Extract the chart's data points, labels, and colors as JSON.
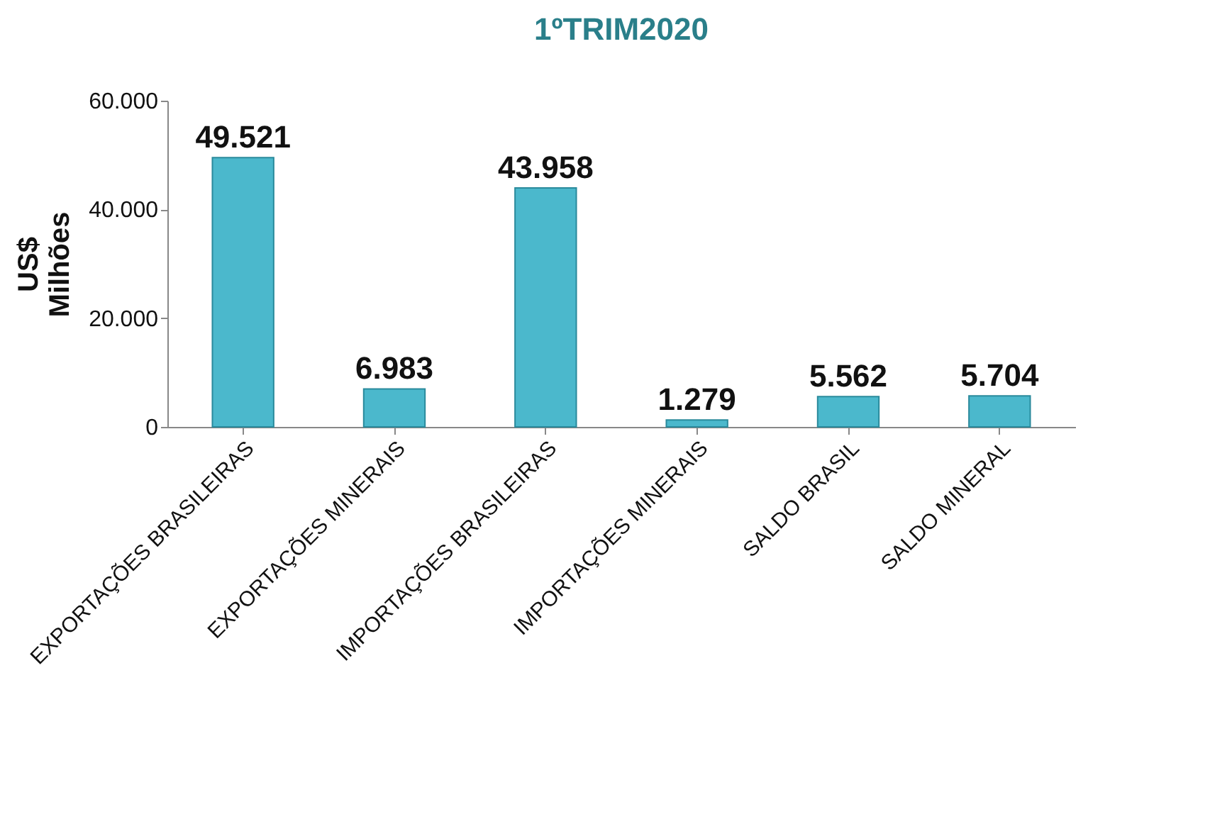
{
  "chart_data": {
    "type": "bar",
    "title": "1ºTRIM2020",
    "ylabel": "US$ Milhões",
    "categories": [
      "EXPORTAÇÕES BRASILEIRAS",
      "EXPORTAÇÕES MINERAIS",
      "IMPORTAÇÕES BRASILEIRAS",
      "IMPORTAÇÕES MINERAIS",
      "SALDO BRASIL",
      "SALDO MINERAL"
    ],
    "values": [
      49521,
      6983,
      43958,
      1279,
      5562,
      5704
    ],
    "value_labels": [
      "49.521",
      "6.983",
      "43.958",
      "1.279",
      "5.562",
      "5.704"
    ],
    "color": "#4bb8cc",
    "ylim": [
      0,
      60000
    ],
    "yticks": [
      {
        "value": 0,
        "label": "0"
      },
      {
        "value": 20000,
        "label": "20.000"
      },
      {
        "value": 40000,
        "label": "40.000"
      },
      {
        "value": 60000,
        "label": "60.000"
      }
    ],
    "grid": false
  }
}
